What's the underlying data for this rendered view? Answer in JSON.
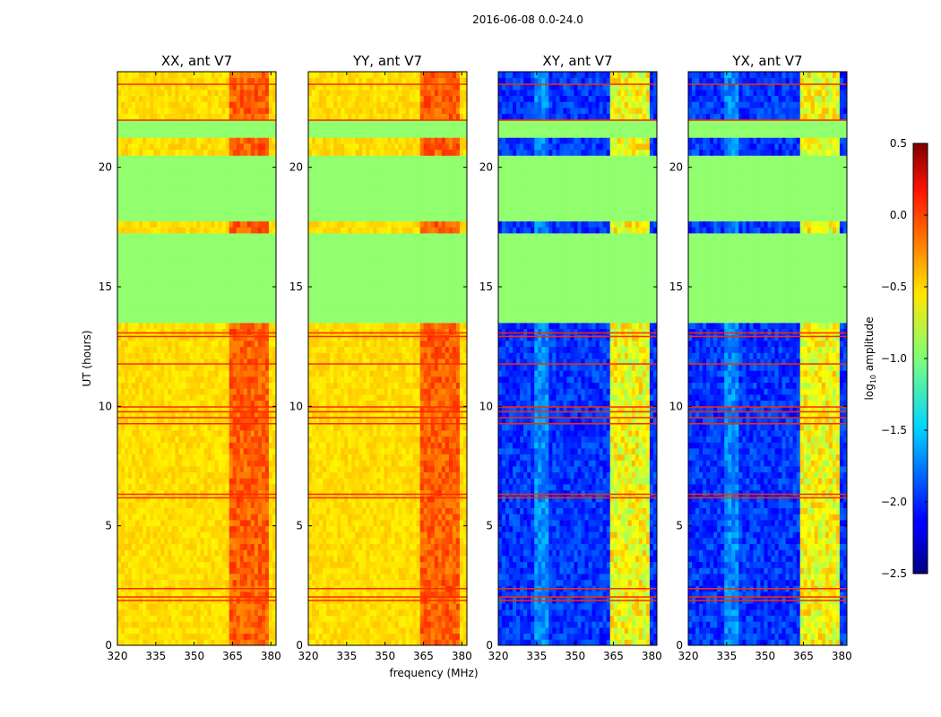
{
  "chart_data": {
    "type": "heatmap",
    "suptitle": "2016-06-08 0.0-24.0",
    "xlabel": "frequency (MHz)",
    "ylabel": "UT (hours)",
    "xlim": [
      320,
      382
    ],
    "ylim": [
      0,
      24
    ],
    "xticks": [
      320,
      335,
      350,
      365,
      380
    ],
    "yticks": [
      0,
      5,
      10,
      15,
      20
    ],
    "panels": [
      {
        "title": "XX, ant V7",
        "kind": "parallel"
      },
      {
        "title": "YY, ant V7",
        "kind": "parallel"
      },
      {
        "title": "XY, ant V7",
        "kind": "cross"
      },
      {
        "title": "YX, ant V7",
        "kind": "cross"
      }
    ],
    "flagged_ut_ranges": [
      [
        13.5,
        17.3
      ],
      [
        17.7,
        20.4
      ],
      [
        21.2,
        21.9
      ]
    ],
    "colorbar": {
      "label": "log10 amplitude",
      "range": [
        -2.5,
        0.5
      ],
      "ticks": [
        "0.5",
        "0.0",
        "−0.5",
        "−1.0",
        "−1.5",
        "−2.0",
        "−2.5"
      ]
    }
  }
}
